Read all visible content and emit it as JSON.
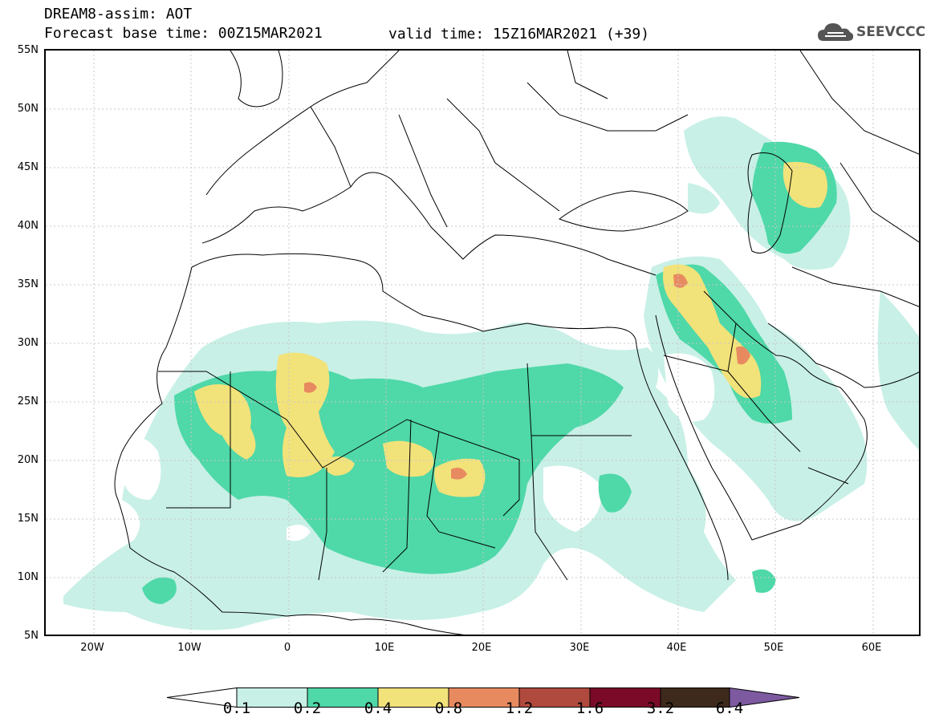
{
  "header": {
    "title_line1": "DREAM8-assim: AOT",
    "title_line2": "Forecast base time: 00Z15MAR2021",
    "valid_time": "valid time: 15Z16MAR2021 (+39)",
    "logo_text": "SEEVCCC"
  },
  "map": {
    "lat_labels": [
      "55N",
      "50N",
      "45N",
      "40N",
      "35N",
      "30N",
      "25N",
      "20N",
      "15N",
      "10N",
      "5N"
    ],
    "lon_labels": [
      "20W",
      "10W",
      "0",
      "10E",
      "20E",
      "30E",
      "40E",
      "50E",
      "60E"
    ],
    "extent": {
      "lon_min": -25,
      "lon_max": 65,
      "lat_min": 5,
      "lat_max": 55
    }
  },
  "colorbar": {
    "labels": [
      "0.1",
      "0.2",
      "0.4",
      "0.8",
      "1.2",
      "1.6",
      "3.2",
      "6.4"
    ],
    "colors": [
      "#ffffff",
      "#c8f0e6",
      "#4fd8a8",
      "#f2e27a",
      "#e88a60",
      "#b04a3e",
      "#7a0a28",
      "#3e2a1c",
      "#7d5aa0"
    ]
  },
  "icons": {
    "logo": "cloud-logo-icon"
  }
}
